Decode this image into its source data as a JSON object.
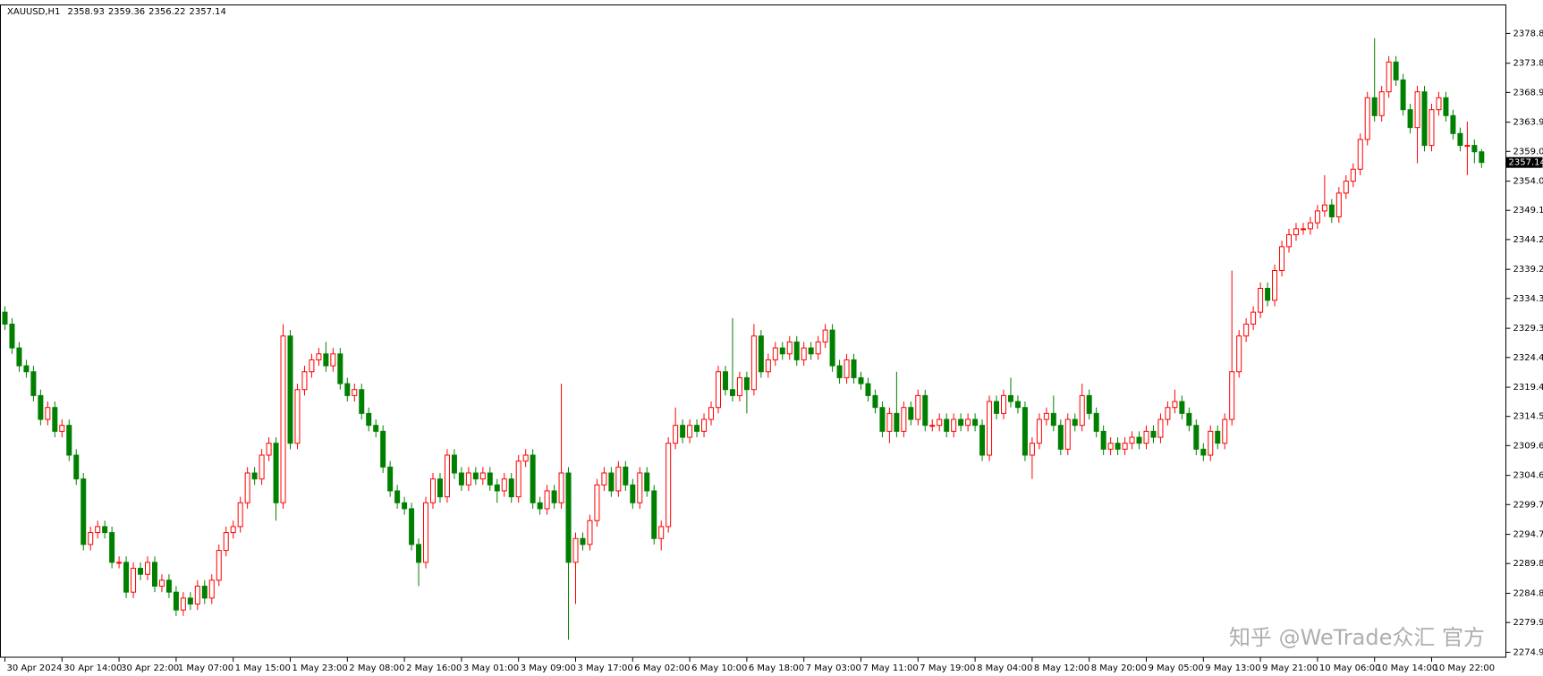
{
  "chart_data": {
    "type": "candlestick",
    "symbol": "XAUUSD,H1",
    "up_color": "#ff0000",
    "down_color": "#008000",
    "open": [
      2332,
      2330,
      2326,
      2323,
      2322,
      2318,
      2314,
      2316,
      2312,
      2313,
      2308,
      2304,
      2293,
      2295,
      2296,
      2295,
      2290,
      2290,
      2285,
      2289,
      2288,
      2290,
      2286,
      2287,
      2285,
      2282,
      2284,
      2283,
      2286,
      2284,
      2287,
      2292,
      2295,
      2296,
      2300,
      2305,
      2304,
      2308,
      2310,
      2300,
      2328,
      2310,
      2319,
      2322,
      2324,
      2325,
      2323,
      2325,
      2320,
      2318,
      2319,
      2315,
      2313,
      2312,
      2306,
      2302,
      2300,
      2299,
      2293,
      2290,
      2300,
      2304,
      2301,
      2308,
      2305,
      2303,
      2305,
      2304,
      2305,
      2303,
      2302,
      2304,
      2301,
      2307,
      2308,
      2300,
      2299,
      2302,
      2300,
      2305,
      2290,
      2294,
      2293,
      2297,
      2303,
      2305,
      2302,
      2306,
      2303,
      2300,
      2305,
      2302,
      2294,
      2296,
      2310,
      2313,
      2311,
      2313,
      2312,
      2314,
      2316,
      2322,
      2319,
      2318,
      2321,
      2319,
      2328,
      2322,
      2324,
      2326,
      2325,
      2327,
      2324,
      2326,
      2325,
      2327,
      2329,
      2323,
      2321,
      2324,
      2321,
      2320,
      2318,
      2316,
      2312,
      2315,
      2312,
      2316,
      2314,
      2318,
      2313,
      2313,
      2314,
      2312,
      2314,
      2313,
      2314,
      2313,
      2308,
      2317,
      2315,
      2318,
      2317,
      2316,
      2308,
      2310,
      2314,
      2315,
      2313,
      2309,
      2314,
      2313,
      2318,
      2315,
      2312,
      2309,
      2310,
      2309,
      2310,
      2311,
      2310,
      2312,
      2311,
      2314,
      2316,
      2317,
      2315,
      2313,
      2309,
      2308,
      2312,
      2310,
      2314,
      2322,
      2328,
      2330,
      2332,
      2336,
      2334,
      2339,
      2343,
      2345,
      2346,
      2346,
      2347,
      2349,
      2350,
      2348,
      2352,
      2354,
      2356,
      2361,
      2368,
      2365,
      2369,
      2374,
      2371,
      2366,
      2363,
      2369,
      2360,
      2366,
      2368,
      2365,
      2362,
      2360,
      2360,
      2358.93
    ],
    "high": [
      2333,
      2331,
      2327,
      2324,
      2323,
      2319,
      2317,
      2317,
      2314,
      2314,
      2309,
      2305,
      2296,
      2297,
      2297,
      2296,
      2291,
      2291,
      2290,
      2290,
      2291,
      2291,
      2288,
      2288,
      2286,
      2285,
      2285,
      2287,
      2287,
      2288,
      2293,
      2296,
      2297,
      2301,
      2306,
      2306,
      2309,
      2311,
      2311,
      2330,
      2329,
      2320,
      2323,
      2325,
      2326,
      2327,
      2326,
      2326,
      2321,
      2320,
      2320,
      2316,
      2314,
      2313,
      2307,
      2303,
      2301,
      2300,
      2294,
      2301,
      2305,
      2305,
      2309,
      2309,
      2306,
      2306,
      2306,
      2306,
      2306,
      2304,
      2305,
      2305,
      2308,
      2309,
      2309,
      2301,
      2303,
      2303,
      2320,
      2306,
      2295,
      2295,
      2298,
      2304,
      2306,
      2306,
      2307,
      2307,
      2304,
      2306,
      2306,
      2303,
      2297,
      2311,
      2316,
      2314,
      2314,
      2314,
      2315,
      2317,
      2323,
      2323,
      2331,
      2322,
      2322,
      2330,
      2329,
      2325,
      2327,
      2327,
      2328,
      2328,
      2327,
      2327,
      2328,
      2330,
      2330,
      2324,
      2325,
      2325,
      2322,
      2321,
      2319,
      2317,
      2316,
      2322,
      2317,
      2317,
      2319,
      2319,
      2314,
      2315,
      2315,
      2315,
      2315,
      2315,
      2315,
      2314,
      2318,
      2318,
      2319,
      2321,
      2318,
      2317,
      2311,
      2315,
      2316,
      2318,
      2314,
      2315,
      2315,
      2320,
      2319,
      2316,
      2313,
      2311,
      2311,
      2311,
      2312,
      2312,
      2313,
      2313,
      2315,
      2317,
      2319,
      2318,
      2316,
      2314,
      2310,
      2313,
      2313,
      2315,
      2339,
      2329,
      2331,
      2333,
      2337,
      2337,
      2340,
      2344,
      2346,
      2347,
      2347,
      2348,
      2350,
      2355,
      2351,
      2353,
      2355,
      2357,
      2362,
      2369,
      2378,
      2370,
      2375,
      2375,
      2372,
      2367,
      2370,
      2370,
      2367,
      2369,
      2369,
      2366,
      2363,
      2364,
      2361,
      2359.36
    ],
    "low": [
      2329,
      2325,
      2322,
      2321,
      2317,
      2313,
      2313,
      2311,
      2311,
      2307,
      2303,
      2292,
      2292,
      2294,
      2294,
      2289,
      2289,
      2284,
      2284,
      2287,
      2287,
      2285,
      2285,
      2284,
      2281,
      2281,
      2282,
      2282,
      2283,
      2283,
      2286,
      2291,
      2294,
      2295,
      2299,
      2303,
      2303,
      2307,
      2297,
      2299,
      2309,
      2309,
      2318,
      2321,
      2323,
      2322,
      2322,
      2319,
      2317,
      2317,
      2314,
      2312,
      2311,
      2305,
      2301,
      2299,
      2298,
      2292,
      2286,
      2289,
      2299,
      2300,
      2300,
      2304,
      2302,
      2302,
      2303,
      2303,
      2302,
      2300,
      2301,
      2300,
      2300,
      2306,
      2299,
      2298,
      2298,
      2299,
      2299,
      2277,
      2283,
      2292,
      2292,
      2296,
      2302,
      2301,
      2301,
      2302,
      2299,
      2299,
      2301,
      2293,
      2292,
      2295,
      2309,
      2310,
      2310,
      2311,
      2311,
      2313,
      2315,
      2318,
      2317,
      2317,
      2315,
      2318,
      2321,
      2321,
      2323,
      2324,
      2324,
      2323,
      2323,
      2324,
      2324,
      2326,
      2322,
      2320,
      2320,
      2320,
      2319,
      2317,
      2315,
      2311,
      2310,
      2311,
      2311,
      2313,
      2313,
      2312,
      2312,
      2312,
      2311,
      2311,
      2312,
      2312,
      2312,
      2307,
      2307,
      2314,
      2314,
      2316,
      2315,
      2307,
      2304,
      2309,
      2313,
      2312,
      2308,
      2308,
      2312,
      2312,
      2314,
      2311,
      2308,
      2308,
      2308,
      2308,
      2309,
      2309,
      2309,
      2310,
      2310,
      2313,
      2315,
      2314,
      2312,
      2308,
      2307,
      2307,
      2309,
      2309,
      2313,
      2321,
      2327,
      2329,
      2331,
      2333,
      2333,
      2338,
      2342,
      2344,
      2345,
      2345,
      2346,
      2348,
      2347,
      2347,
      2351,
      2353,
      2355,
      2360,
      2364,
      2364,
      2368,
      2370,
      2365,
      2362,
      2357,
      2359,
      2359,
      2365,
      2364,
      2361,
      2359,
      2355,
      2357,
      2356.22
    ],
    "close": [
      2330,
      2326,
      2323,
      2322,
      2318,
      2314,
      2316,
      2312,
      2313,
      2308,
      2304,
      2293,
      2295,
      2296,
      2295,
      2290,
      2290,
      2285,
      2289,
      2288,
      2290,
      2286,
      2287,
      2285,
      2282,
      2284,
      2283,
      2286,
      2284,
      2287,
      2292,
      2295,
      2296,
      2300,
      2305,
      2304,
      2308,
      2310,
      2300,
      2328,
      2310,
      2319,
      2322,
      2324,
      2325,
      2323,
      2325,
      2320,
      2318,
      2319,
      2315,
      2313,
      2312,
      2306,
      2302,
      2300,
      2299,
      2293,
      2290,
      2300,
      2304,
      2301,
      2308,
      2305,
      2303,
      2305,
      2304,
      2305,
      2303,
      2302,
      2304,
      2301,
      2307,
      2308,
      2300,
      2299,
      2302,
      2300,
      2305,
      2290,
      2294,
      2293,
      2297,
      2303,
      2305,
      2302,
      2306,
      2303,
      2300,
      2305,
      2302,
      2294,
      2296,
      2310,
      2313,
      2311,
      2313,
      2312,
      2314,
      2316,
      2322,
      2319,
      2318,
      2321,
      2319,
      2328,
      2322,
      2324,
      2326,
      2325,
      2327,
      2324,
      2326,
      2325,
      2327,
      2329,
      2323,
      2321,
      2324,
      2321,
      2320,
      2318,
      2316,
      2312,
      2315,
      2312,
      2316,
      2314,
      2318,
      2313,
      2313,
      2314,
      2312,
      2314,
      2313,
      2314,
      2313,
      2308,
      2317,
      2315,
      2318,
      2317,
      2316,
      2308,
      2310,
      2314,
      2315,
      2313,
      2309,
      2314,
      2313,
      2318,
      2315,
      2312,
      2309,
      2310,
      2309,
      2310,
      2311,
      2310,
      2312,
      2311,
      2314,
      2316,
      2317,
      2315,
      2313,
      2309,
      2308,
      2312,
      2310,
      2314,
      2322,
      2328,
      2330,
      2332,
      2336,
      2334,
      2339,
      2343,
      2345,
      2346,
      2346,
      2347,
      2349,
      2350,
      2348,
      2352,
      2354,
      2356,
      2361,
      2368,
      2365,
      2369,
      2374,
      2371,
      2366,
      2363,
      2369,
      2360,
      2366,
      2368,
      2365,
      2362,
      2360,
      2360,
      2358.93,
      2357.14
    ],
    "xticks": [
      {
        "value": 0,
        "label": "30 Apr 2024"
      },
      {
        "value": 8,
        "label": "30 Apr 14:00"
      },
      {
        "value": 16,
        "label": "30 Apr 22:00"
      },
      {
        "value": 24,
        "label": "1 May 07:00"
      },
      {
        "value": 32,
        "label": "1 May 15:00"
      },
      {
        "value": 40,
        "label": "1 May 23:00"
      },
      {
        "value": 48,
        "label": "2 May 08:00"
      },
      {
        "value": 56,
        "label": "2 May 16:00"
      },
      {
        "value": 64,
        "label": "3 May 01:00"
      },
      {
        "value": 72,
        "label": "3 May 09:00"
      },
      {
        "value": 80,
        "label": "3 May 17:00"
      },
      {
        "value": 88,
        "label": "6 May 02:00"
      },
      {
        "value": 96,
        "label": "6 May 10:00"
      },
      {
        "value": 104,
        "label": "6 May 18:00"
      },
      {
        "value": 112,
        "label": "7 May 03:00"
      },
      {
        "value": 120,
        "label": "7 May 11:00"
      },
      {
        "value": 128,
        "label": "7 May 19:00"
      },
      {
        "value": 136,
        "label": "8 May 04:00"
      },
      {
        "value": 144,
        "label": "8 May 12:00"
      },
      {
        "value": 152,
        "label": "8 May 20:00"
      },
      {
        "value": 160,
        "label": "9 May 05:00"
      },
      {
        "value": 168,
        "label": "9 May 13:00"
      },
      {
        "value": 176,
        "label": "9 May 21:00"
      },
      {
        "value": 184,
        "label": "10 May 06:00"
      },
      {
        "value": 192,
        "label": "10 May 14:00"
      },
      {
        "value": 200,
        "label": "10 May 22:00"
      }
    ],
    "ylim": [
      2274.07,
      2383.59
    ],
    "yticks": [
      {
        "value": 2378.8,
        "label": "2378.80"
      },
      {
        "value": 2373.8,
        "label": "2373.80"
      },
      {
        "value": 2368.9,
        "label": "2368.90"
      },
      {
        "value": 2363.9,
        "label": "2363.90"
      },
      {
        "value": 2359,
        "label": "2359.00"
      },
      {
        "value": 2354,
        "label": "2354.00"
      },
      {
        "value": 2349.1,
        "label": "2349.10"
      },
      {
        "value": 2344.2,
        "label": "2344.20"
      },
      {
        "value": 2339.2,
        "label": "2339.20"
      },
      {
        "value": 2334.3,
        "label": "2334.30"
      },
      {
        "value": 2329.3,
        "label": "2329.30"
      },
      {
        "value": 2324.4,
        "label": "2324.40"
      },
      {
        "value": 2319.4,
        "label": "2319.40"
      },
      {
        "value": 2314.5,
        "label": "2314.50"
      },
      {
        "value": 2309.6,
        "label": "2309.60"
      },
      {
        "value": 2304.6,
        "label": "2304.60"
      },
      {
        "value": 2299.7,
        "label": "2299.70"
      },
      {
        "value": 2294.7,
        "label": "2294.70"
      },
      {
        "value": 2289.8,
        "label": "2289.80"
      },
      {
        "value": 2284.8,
        "label": "2284.80"
      },
      {
        "value": 2279.9,
        "label": "2279.90"
      },
      {
        "value": 2274.9,
        "label": "2274.90"
      }
    ],
    "watermark": "知乎 @WeTrade众汇 官方"
  }
}
